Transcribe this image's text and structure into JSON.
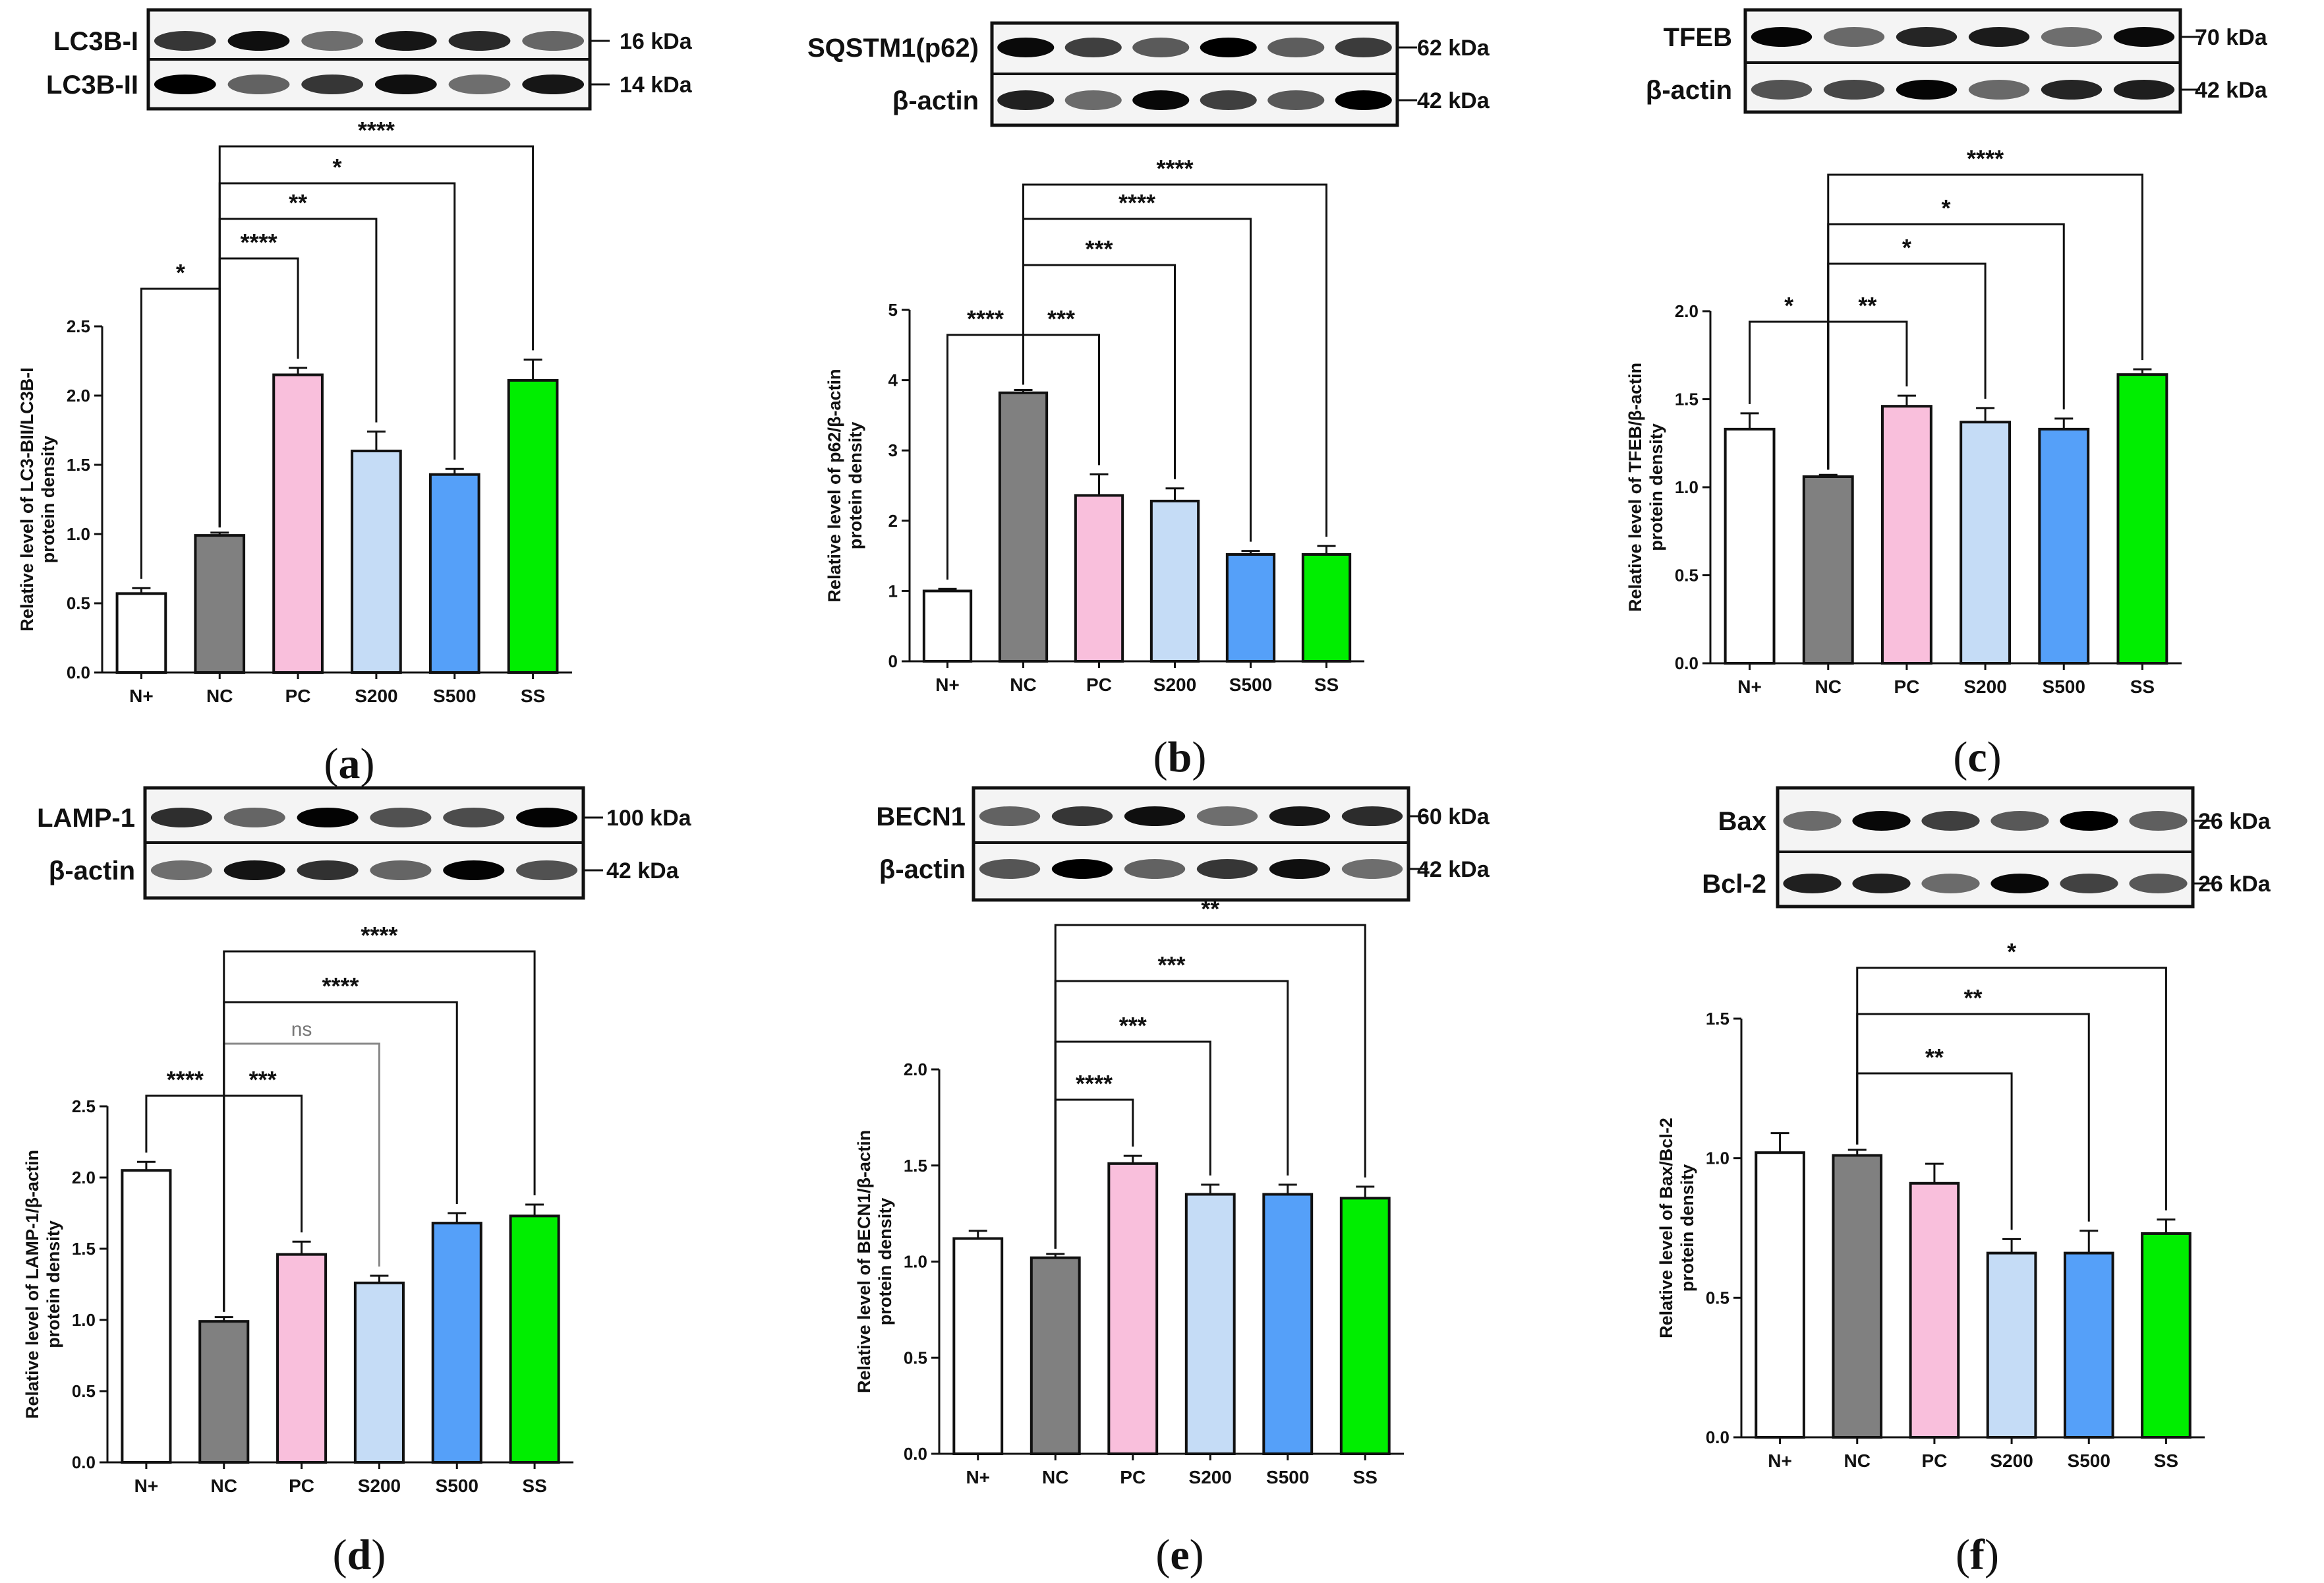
{
  "figure": {
    "groups": [
      "N+",
      "NC",
      "PC",
      "S200",
      "S500",
      "SS"
    ],
    "colors": {
      "N+": "#ffffff",
      "NC": "#808080",
      "PC": "#f9bfdc",
      "S200": "#c5dcf6",
      "S500": "#55a0f9",
      "SS": "#00ee00"
    }
  },
  "chart_data": [
    {
      "panel": "a",
      "type": "bar",
      "ylabel": [
        "Relative level of LC3-BII/LC3B-I",
        "protein density"
      ],
      "ylim": [
        0,
        2.5
      ],
      "yticks": [
        "0.0",
        "0.5",
        "1.0",
        "1.5",
        "2.0",
        "2.5"
      ],
      "categories": [
        "N+",
        "NC",
        "PC",
        "S200",
        "S500",
        "SS"
      ],
      "values": [
        0.57,
        0.99,
        2.15,
        1.6,
        1.43,
        2.11
      ],
      "errors": [
        0.04,
        0.02,
        0.05,
        0.14,
        0.04,
        0.15
      ],
      "blot": {
        "rows": [
          {
            "label": "LC3B-I",
            "kda": "16 kDa"
          },
          {
            "label": "LC3B-II",
            "kda": "14 kDa"
          }
        ]
      },
      "significance": [
        {
          "from": "N+",
          "to": "NC",
          "label": "*"
        },
        {
          "from": "NC",
          "to": "PC",
          "label": "****"
        },
        {
          "from": "NC",
          "to": "S200",
          "label": "**"
        },
        {
          "from": "NC",
          "to": "S500",
          "label": "*"
        },
        {
          "from": "NC",
          "to": "SS",
          "label": "****"
        }
      ]
    },
    {
      "panel": "b",
      "type": "bar",
      "ylabel": [
        "Relative level of p62/β-actin",
        "protein density"
      ],
      "ylim": [
        0,
        5
      ],
      "yticks": [
        "0",
        "1",
        "2",
        "3",
        "4",
        "5"
      ],
      "categories": [
        "N+",
        "NC",
        "PC",
        "S200",
        "S500",
        "SS"
      ],
      "values": [
        1.0,
        3.82,
        2.36,
        2.28,
        1.52,
        1.52
      ],
      "errors": [
        0.03,
        0.04,
        0.3,
        0.18,
        0.05,
        0.12
      ],
      "blot": {
        "rows": [
          {
            "label": "SQSTM1(p62)",
            "kda": "62 kDa"
          },
          {
            "label": "β-actin",
            "kda": "42 kDa"
          }
        ]
      },
      "significance": [
        {
          "from": "N+",
          "to": "NC",
          "label": "****"
        },
        {
          "from": "NC",
          "to": "PC",
          "label": "***"
        },
        {
          "from": "NC",
          "to": "S200",
          "label": "***"
        },
        {
          "from": "NC",
          "to": "S500",
          "label": "****"
        },
        {
          "from": "NC",
          "to": "SS",
          "label": "****"
        }
      ]
    },
    {
      "panel": "c",
      "type": "bar",
      "ylabel": [
        "Relative level of TFEB/β-actin",
        "protein density"
      ],
      "ylim": [
        0,
        2.0
      ],
      "yticks": [
        "0.0",
        "0.5",
        "1.0",
        "1.5",
        "2.0"
      ],
      "categories": [
        "N+",
        "NC",
        "PC",
        "S200",
        "S500",
        "SS"
      ],
      "values": [
        1.33,
        1.06,
        1.46,
        1.37,
        1.33,
        1.64
      ],
      "errors": [
        0.09,
        0.01,
        0.06,
        0.08,
        0.06,
        0.03
      ],
      "blot": {
        "rows": [
          {
            "label": "TFEB",
            "kda": "70 kDa"
          },
          {
            "label": "β-actin",
            "kda": "42 kDa"
          }
        ]
      },
      "significance": [
        {
          "from": "N+",
          "to": "NC",
          "label": "*"
        },
        {
          "from": "NC",
          "to": "PC",
          "label": "**"
        },
        {
          "from": "NC",
          "to": "S200",
          "label": "*"
        },
        {
          "from": "NC",
          "to": "S500",
          "label": "*"
        },
        {
          "from": "NC",
          "to": "SS",
          "label": "****"
        }
      ]
    },
    {
      "panel": "d",
      "type": "bar",
      "ylabel": [
        "Relative level of LAMP-1/β-actin",
        "protein density"
      ],
      "ylim": [
        0,
        2.5
      ],
      "yticks": [
        "0.0",
        "0.5",
        "1.0",
        "1.5",
        "2.0",
        "2.5"
      ],
      "categories": [
        "N+",
        "NC",
        "PC",
        "S200",
        "S500",
        "SS"
      ],
      "values": [
        2.05,
        0.99,
        1.46,
        1.26,
        1.68,
        1.73
      ],
      "errors": [
        0.06,
        0.03,
        0.09,
        0.05,
        0.07,
        0.08
      ],
      "blot": {
        "rows": [
          {
            "label": "LAMP-1",
            "kda": "100 kDa"
          },
          {
            "label": "β-actin",
            "kda": "42 kDa"
          }
        ]
      },
      "significance": [
        {
          "from": "N+",
          "to": "NC",
          "label": "****"
        },
        {
          "from": "NC",
          "to": "PC",
          "label": "***"
        },
        {
          "from": "NC",
          "to": "S200",
          "label": "ns"
        },
        {
          "from": "NC",
          "to": "S500",
          "label": "****"
        },
        {
          "from": "NC",
          "to": "SS",
          "label": "****"
        }
      ]
    },
    {
      "panel": "e",
      "type": "bar",
      "ylabel": [
        "Relative level of BECN1/β-actin",
        "protein density"
      ],
      "ylim": [
        0,
        2.0
      ],
      "yticks": [
        "0.0",
        "0.5",
        "1.0",
        "1.5",
        "2.0"
      ],
      "categories": [
        "N+",
        "NC",
        "PC",
        "S200",
        "S500",
        "SS"
      ],
      "values": [
        1.12,
        1.02,
        1.51,
        1.35,
        1.35,
        1.33
      ],
      "errors": [
        0.04,
        0.02,
        0.04,
        0.05,
        0.05,
        0.06
      ],
      "blot": {
        "rows": [
          {
            "label": "BECN1",
            "kda": "60 kDa"
          },
          {
            "label": "β-actin",
            "kda": "42 kDa"
          }
        ]
      },
      "significance": [
        {
          "from": "NC",
          "to": "PC",
          "label": "****"
        },
        {
          "from": "NC",
          "to": "S200",
          "label": "***"
        },
        {
          "from": "NC",
          "to": "S500",
          "label": "***"
        },
        {
          "from": "NC",
          "to": "SS",
          "label": "**"
        }
      ]
    },
    {
      "panel": "f",
      "type": "bar",
      "ylabel": [
        "Relative level of Bax/Bcl-2",
        "protein density"
      ],
      "ylim": [
        0,
        1.5
      ],
      "yticks": [
        "0.0",
        "0.5",
        "1.0",
        "1.5"
      ],
      "categories": [
        "N+",
        "NC",
        "PC",
        "S200",
        "S500",
        "SS"
      ],
      "values": [
        1.02,
        1.01,
        0.91,
        0.66,
        0.66,
        0.73
      ],
      "errors": [
        0.07,
        0.02,
        0.07,
        0.05,
        0.08,
        0.05
      ],
      "blot": {
        "rows": [
          {
            "label": "Bax",
            "kda": "26 kDa"
          },
          {
            "label": "Bcl-2",
            "kda": "26 kDa"
          }
        ]
      },
      "significance": [
        {
          "from": "NC",
          "to": "S200",
          "label": "**"
        },
        {
          "from": "NC",
          "to": "S500",
          "label": "**"
        },
        {
          "from": "NC",
          "to": "SS",
          "label": "*"
        }
      ]
    }
  ]
}
